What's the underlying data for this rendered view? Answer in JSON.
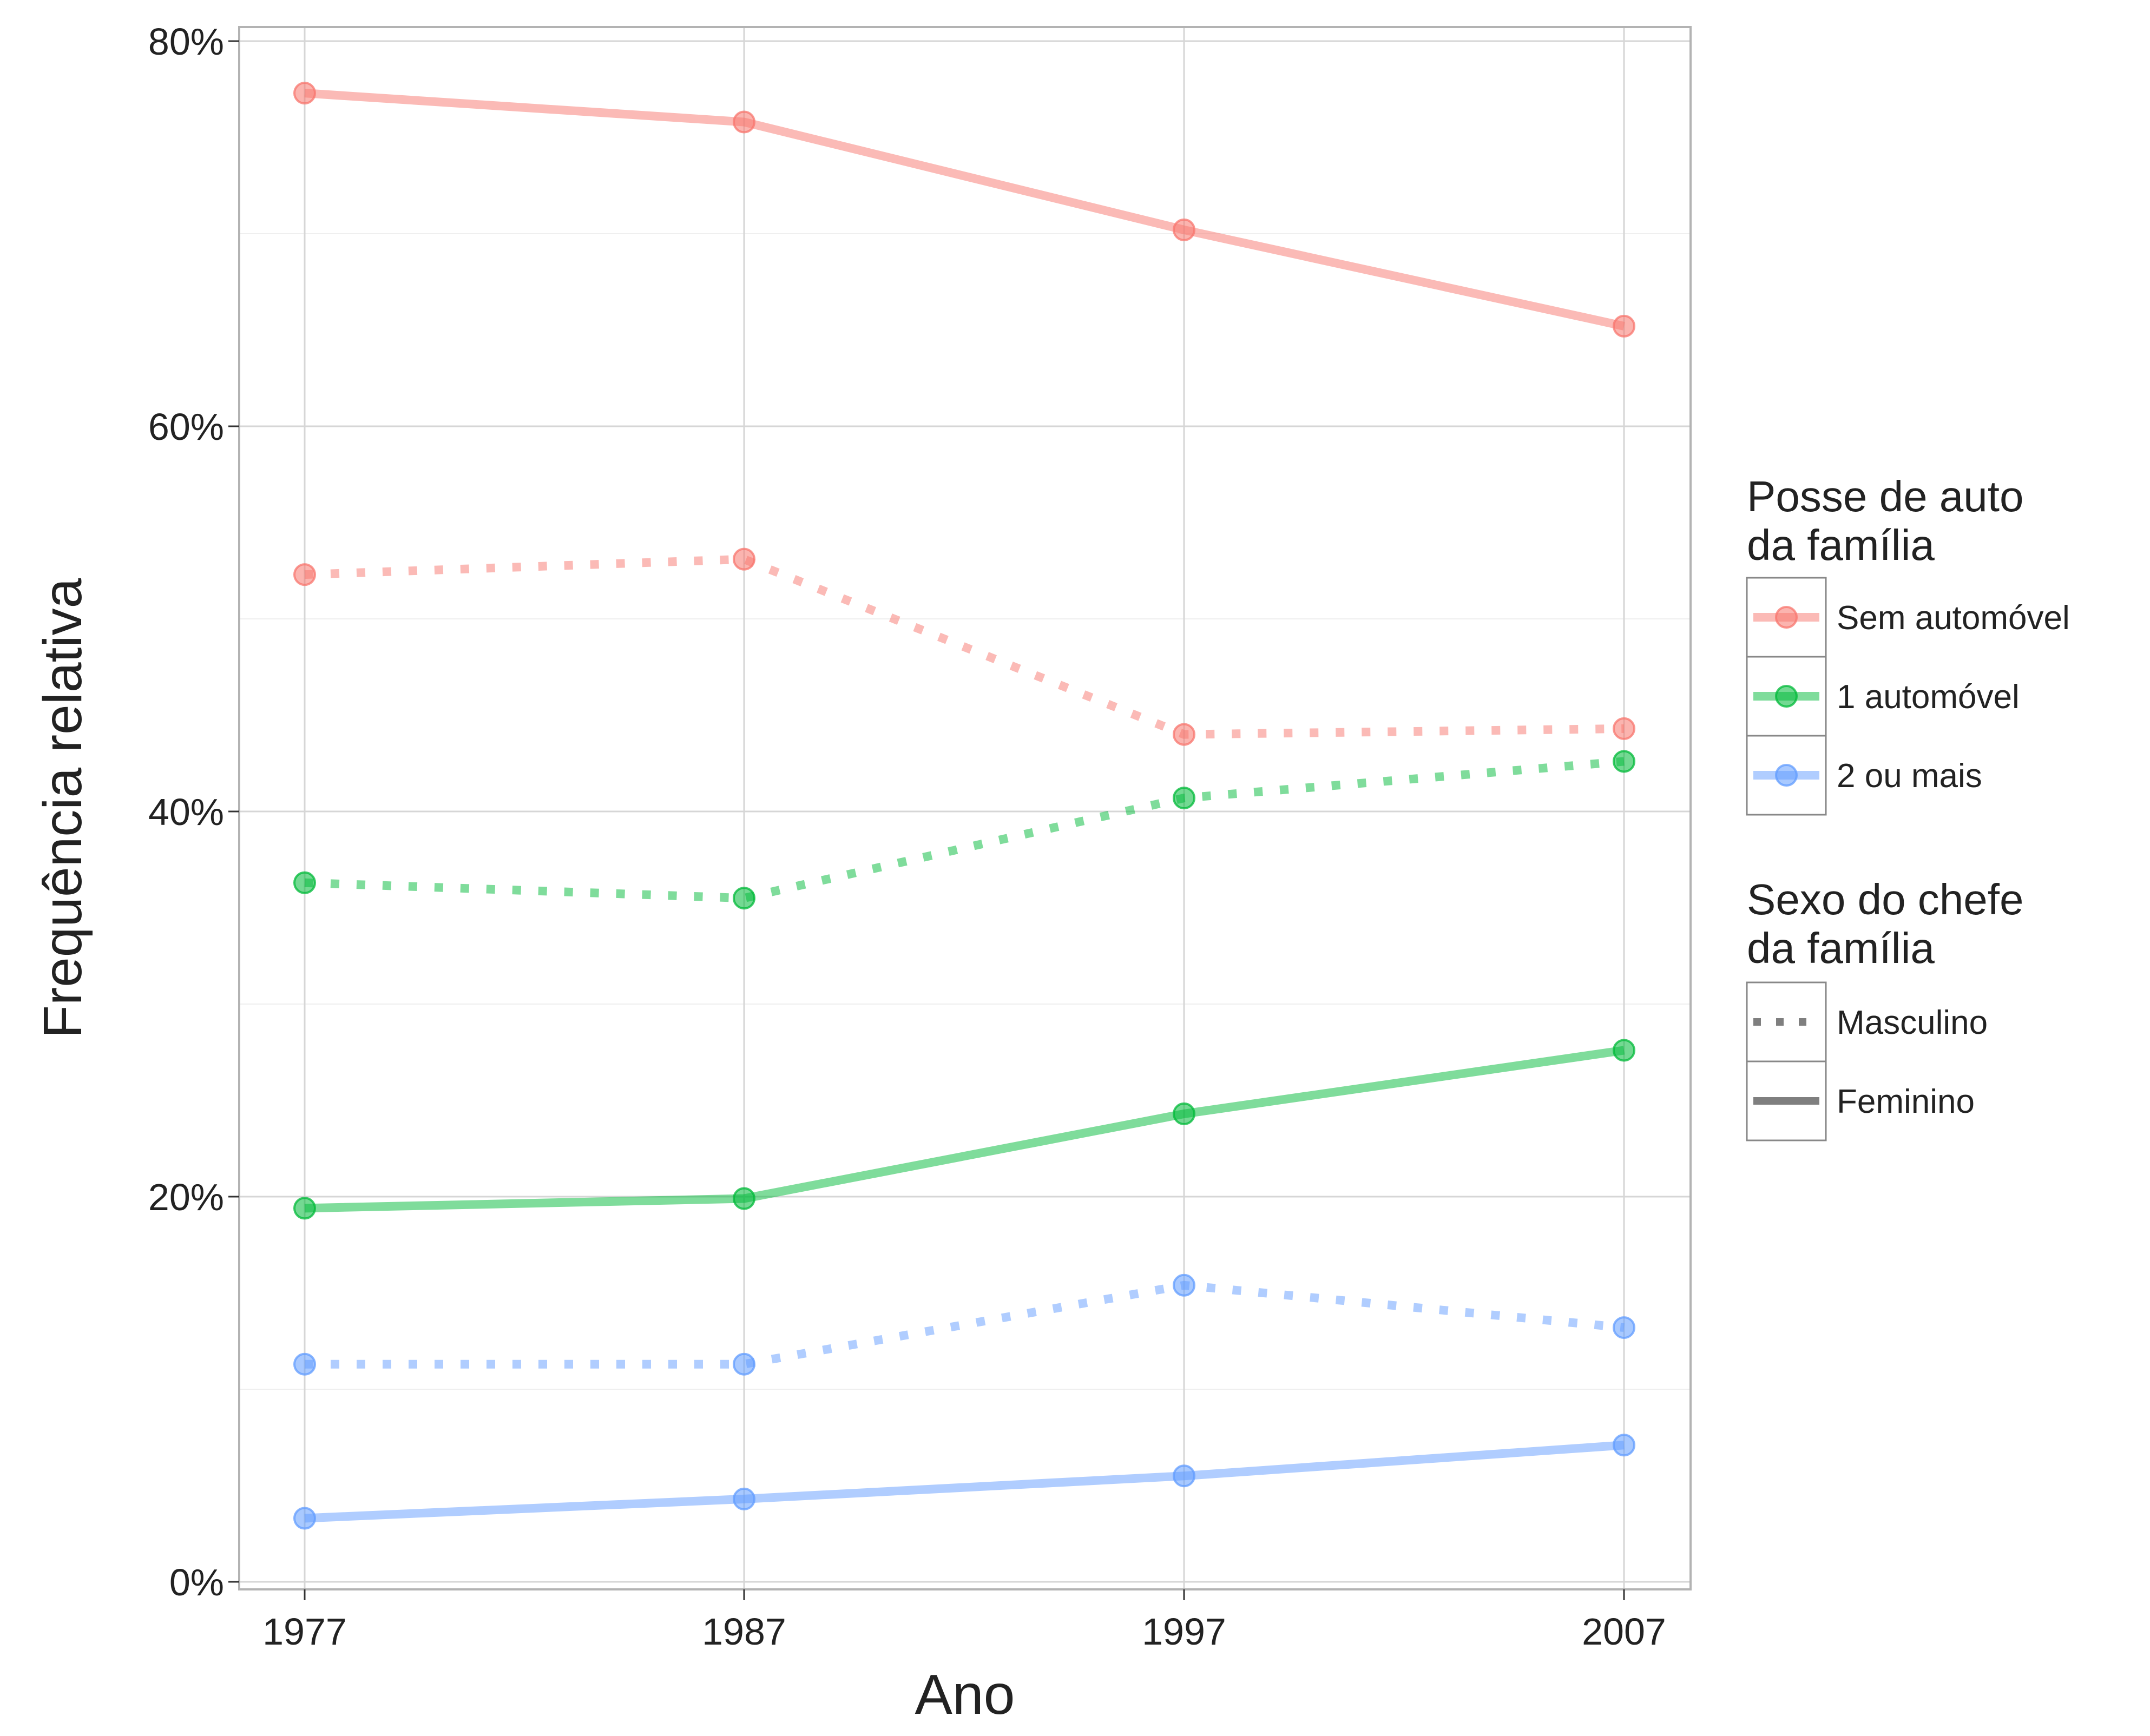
{
  "chart_data": {
    "type": "line",
    "xlabel": "Ano",
    "ylabel": "Frequência relativa",
    "x": [
      1977,
      1987,
      1997,
      2007
    ],
    "x_tick_labels": [
      "1977",
      "1987",
      "1997",
      "2007"
    ],
    "y_tick_labels": [
      "0%",
      "20%",
      "40%",
      "60%",
      "80%"
    ],
    "y_ticks": [
      0,
      20,
      40,
      60,
      80
    ],
    "ylim": [
      -0.5,
      81
    ],
    "y_unit": "%",
    "grid": true,
    "legend_position": "right",
    "colors": {
      "Sem automóvel": "#F8766D",
      "1 automóvel": "#00BA38",
      "2 ou mais": "#619CFF",
      "legend_key_line": "#7f7f7f"
    },
    "legends": [
      {
        "title": "Posse de auto\nda família",
        "title_lines": [
          "Posse de auto",
          "da família"
        ],
        "entries": [
          "Sem automóvel",
          "1 automóvel",
          "2 ou mais"
        ]
      },
      {
        "title": "Sexo do chefe\nda família",
        "title_lines": [
          "Sexo do chefe",
          "da família"
        ],
        "entries": [
          "Masculino",
          "Feminino"
        ],
        "linetypes": [
          "dotted",
          "solid"
        ]
      }
    ],
    "series": [
      {
        "name": "Sem automóvel",
        "group": "Feminino",
        "linetype": "solid",
        "color": "#F8766D",
        "values": [
          77.3,
          75.8,
          70.2,
          65.2
        ]
      },
      {
        "name": "Sem automóvel",
        "group": "Masculino",
        "linetype": "dotted",
        "color": "#F8766D",
        "values": [
          52.3,
          53.1,
          44.0,
          44.3
        ]
      },
      {
        "name": "1 automóvel",
        "group": "Masculino",
        "linetype": "dotted",
        "color": "#00BA38",
        "values": [
          36.3,
          35.5,
          40.7,
          42.6
        ]
      },
      {
        "name": "1 automóvel",
        "group": "Feminino",
        "linetype": "solid",
        "color": "#00BA38",
        "values": [
          19.4,
          19.9,
          24.3,
          27.6
        ]
      },
      {
        "name": "2 ou mais",
        "group": "Masculino",
        "linetype": "dotted",
        "color": "#619CFF",
        "values": [
          11.3,
          11.3,
          15.4,
          13.2
        ]
      },
      {
        "name": "2 ou mais",
        "group": "Feminino",
        "linetype": "solid",
        "color": "#619CFF",
        "values": [
          3.3,
          4.3,
          5.5,
          7.1
        ]
      }
    ]
  }
}
